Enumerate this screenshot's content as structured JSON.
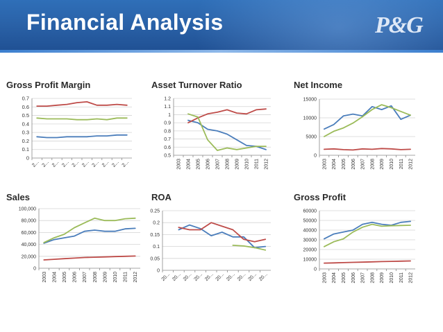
{
  "header": {
    "title": "Financial Analysis",
    "logo": "P&G"
  },
  "colors": {
    "blue": "#4a7dbb",
    "red": "#be4b48",
    "green": "#9bbb59",
    "grid": "#d4d4d4",
    "axis": "#888888"
  },
  "chart_data": [
    {
      "id": "gpm",
      "type": "line",
      "title": "Gross Profit Margin",
      "categories": [
        "2...",
        "2...",
        "2...",
        "2...",
        "2...",
        "2...",
        "2...",
        "2...",
        "2...",
        "2..."
      ],
      "yticks": [
        "0",
        "0.1",
        "0.2",
        "0.3",
        "0.4",
        "0.5",
        "0.6",
        "0.7"
      ],
      "ylim": [
        0,
        0.7
      ],
      "series": [
        {
          "color": "blue",
          "values": [
            0.25,
            0.24,
            0.24,
            0.25,
            0.25,
            0.25,
            0.26,
            0.26,
            0.27,
            0.27
          ]
        },
        {
          "color": "red",
          "values": [
            0.61,
            0.61,
            0.62,
            0.63,
            0.65,
            0.66,
            0.62,
            0.62,
            0.63,
            0.62
          ]
        },
        {
          "color": "green",
          "values": [
            0.47,
            0.46,
            0.46,
            0.46,
            0.45,
            0.45,
            0.46,
            0.45,
            0.47,
            0.47
          ]
        }
      ]
    },
    {
      "id": "atr",
      "type": "line",
      "title": "Asset Turnover Ratio",
      "categories": [
        "2003",
        "2004",
        "2005",
        "2006",
        "2007",
        "2008",
        "2009",
        "2010",
        "2011",
        "2012"
      ],
      "yticks": [
        "0.5",
        "0.6",
        "0.7",
        "0.8",
        "0.9",
        "1",
        "1.1",
        "1.2"
      ],
      "ylim": [
        0.5,
        1.2
      ],
      "series": [
        {
          "color": "blue",
          "values": [
            null,
            0.93,
            0.9,
            0.82,
            0.8,
            0.76,
            0.69,
            0.62,
            0.61,
            0.57
          ]
        },
        {
          "color": "red",
          "values": [
            null,
            0.9,
            0.96,
            1.01,
            1.03,
            1.06,
            1.02,
            1.01,
            1.06,
            1.07
          ]
        },
        {
          "color": "green",
          "values": [
            null,
            1.01,
            0.97,
            0.69,
            0.56,
            0.59,
            0.57,
            0.59,
            0.61,
            0.61
          ]
        }
      ]
    },
    {
      "id": "ni",
      "type": "line",
      "title": "Net Income",
      "categories": [
        "2003",
        "2004",
        "2005",
        "2006",
        "2007",
        "2008",
        "2009",
        "2010",
        "2011",
        "2012"
      ],
      "yticks": [
        "0",
        "5000",
        "10000",
        "15000"
      ],
      "ylim": [
        0,
        15000
      ],
      "series": [
        {
          "color": "blue",
          "values": [
            7000,
            8200,
            10500,
            11000,
            10500,
            13000,
            12200,
            13200,
            9600,
            10700
          ]
        },
        {
          "color": "red",
          "values": [
            1600,
            1700,
            1500,
            1400,
            1700,
            1600,
            1800,
            1700,
            1500,
            1600
          ]
        },
        {
          "color": "green",
          "values": [
            5000,
            6400,
            7300,
            8600,
            10300,
            12200,
            13500,
            12700,
            11700,
            10700
          ]
        }
      ]
    },
    {
      "id": "sales",
      "type": "line",
      "title": "Sales",
      "categories": [
        "2003",
        "2004",
        "2005",
        "2006",
        "2007",
        "2008",
        "2009",
        "2010",
        "2011",
        "2012"
      ],
      "yticks": [
        "0",
        "20,000",
        "40,000",
        "60,000",
        "80,000",
        "100,000"
      ],
      "ylim": [
        0,
        100000
      ],
      "series": [
        {
          "color": "blue",
          "values": [
            42000,
            48000,
            51000,
            54000,
            62000,
            64000,
            62000,
            62000,
            66000,
            67000
          ]
        },
        {
          "color": "red",
          "values": [
            14000,
            15000,
            16000,
            17000,
            18000,
            18500,
            19000,
            19500,
            20000,
            20500
          ]
        },
        {
          "color": "green",
          "values": [
            43000,
            51000,
            57000,
            68000,
            76000,
            84000,
            80000,
            80000,
            83000,
            84000
          ]
        }
      ]
    },
    {
      "id": "roa",
      "type": "line",
      "title": "ROA",
      "categories": [
        "20...",
        "20...",
        "20...",
        "20...",
        "20...",
        "20...",
        "20...",
        "20...",
        "20...",
        "20..."
      ],
      "yticks": [
        "0",
        "0.05",
        "0.1",
        "0.15",
        "0.2",
        "0.25"
      ],
      "ylim": [
        0,
        0.25
      ],
      "series": [
        {
          "color": "blue",
          "values": [
            null,
            0.17,
            0.19,
            0.175,
            0.145,
            0.16,
            0.14,
            0.14,
            0.095,
            0.1
          ]
        },
        {
          "color": "red",
          "values": [
            null,
            0.18,
            0.17,
            0.17,
            0.2,
            0.185,
            0.17,
            0.13,
            0.12,
            0.13
          ]
        },
        {
          "color": "green",
          "values": [
            null,
            null,
            null,
            null,
            null,
            null,
            0.105,
            0.102,
            0.095,
            0.085
          ]
        }
      ]
    },
    {
      "id": "gp",
      "type": "line",
      "title": "Gross Profit",
      "categories": [
        "2003",
        "2004",
        "2005",
        "2006",
        "2007",
        "2008",
        "2009",
        "2010",
        "2011",
        "2012"
      ],
      "yticks": [
        "0",
        "10000",
        "20000",
        "30000",
        "40000",
        "50000",
        "60000"
      ],
      "ylim": [
        0,
        60000
      ],
      "series": [
        {
          "color": "blue",
          "values": [
            31000,
            36000,
            38000,
            40000,
            46000,
            48000,
            46000,
            45000,
            48000,
            49000
          ]
        },
        {
          "color": "red",
          "values": [
            6000,
            6200,
            6500,
            6800,
            7000,
            7300,
            7600,
            7800,
            8000,
            8200
          ]
        },
        {
          "color": "green",
          "values": [
            23000,
            28000,
            31000,
            38000,
            43000,
            46000,
            44000,
            44500,
            44800,
            45000
          ]
        }
      ]
    }
  ]
}
